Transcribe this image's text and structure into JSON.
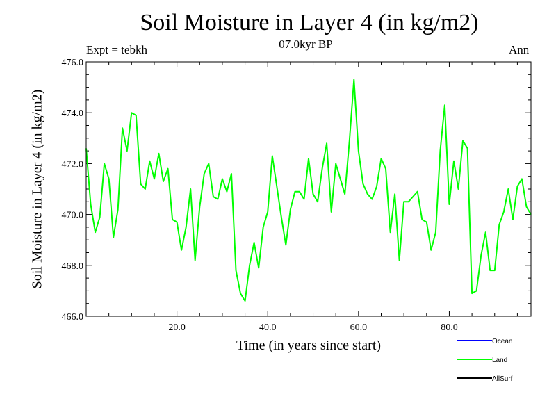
{
  "chart_data": {
    "type": "line",
    "title": "Soil Moisture in Layer 4 (in kg/m2)",
    "subtitle": "07.0kyr BP",
    "experiment": "Expt = tebkh",
    "period": "Ann",
    "xlabel": "Time (in years since start)",
    "ylabel": "Soil Moisture in Layer 4 (in kg/m2)",
    "xlim": [
      0,
      98
    ],
    "ylim": [
      466,
      476
    ],
    "xticks": [
      20,
      40,
      60,
      80
    ],
    "xtick_labels": [
      "20.0",
      "40.0",
      "60.0",
      "80.0"
    ],
    "yticks": [
      466,
      468,
      470,
      472,
      474,
      476
    ],
    "ytick_labels": [
      "466.0",
      "468.0",
      "470.0",
      "472.0",
      "474.0",
      "476.0"
    ],
    "series": [
      {
        "name": "Land",
        "color": "#00ff00",
        "x": [
          0,
          1,
          2,
          3,
          4,
          5,
          6,
          7,
          8,
          9,
          10,
          11,
          12,
          13,
          14,
          15,
          16,
          17,
          18,
          19,
          20,
          21,
          22,
          23,
          24,
          25,
          26,
          27,
          28,
          29,
          30,
          31,
          32,
          33,
          34,
          35,
          36,
          37,
          38,
          39,
          40,
          41,
          42,
          43,
          44,
          45,
          46,
          47,
          48,
          49,
          50,
          51,
          52,
          53,
          54,
          55,
          56,
          57,
          58,
          59,
          60,
          61,
          62,
          63,
          64,
          65,
          66,
          67,
          68,
          69,
          70,
          71,
          72,
          73,
          74,
          75,
          76,
          77,
          78,
          79,
          80,
          81,
          82,
          83,
          84,
          85,
          86,
          87,
          88,
          89,
          90,
          91,
          92,
          93,
          94,
          95,
          96,
          97,
          98
        ],
        "values": [
          472.6,
          470.4,
          469.3,
          469.9,
          472.0,
          471.4,
          469.1,
          470.2,
          473.4,
          472.5,
          474.0,
          473.9,
          471.2,
          471.0,
          472.1,
          471.4,
          472.4,
          471.3,
          471.8,
          469.8,
          469.7,
          468.6,
          469.5,
          471.0,
          468.2,
          470.3,
          471.6,
          472.0,
          470.7,
          470.6,
          471.4,
          470.9,
          471.6,
          467.8,
          466.9,
          466.6,
          468.0,
          468.9,
          467.9,
          469.5,
          470.1,
          472.3,
          471.1,
          469.9,
          468.8,
          470.2,
          470.9,
          470.9,
          470.6,
          472.2,
          470.8,
          470.5,
          471.8,
          472.8,
          470.1,
          472.0,
          471.4,
          470.8,
          472.9,
          475.3,
          472.5,
          471.2,
          470.8,
          470.6,
          471.1,
          472.2,
          471.8,
          469.3,
          470.8,
          468.2,
          470.5,
          470.5,
          470.7,
          470.9,
          469.8,
          469.7,
          468.6,
          469.3,
          472.5,
          474.3,
          470.4,
          472.1,
          471.0,
          472.9,
          472.6,
          466.9,
          467.0,
          468.4,
          469.3,
          467.8,
          467.8,
          469.6,
          470.1,
          471.0,
          469.8,
          471.1,
          471.4,
          470.3,
          470.0
        ]
      }
    ],
    "legend": [
      {
        "label": "Ocean",
        "color": "#0000ff"
      },
      {
        "label": "Land",
        "color": "#00ff00"
      },
      {
        "label": "AllSurf",
        "color": "#000000"
      }
    ]
  }
}
